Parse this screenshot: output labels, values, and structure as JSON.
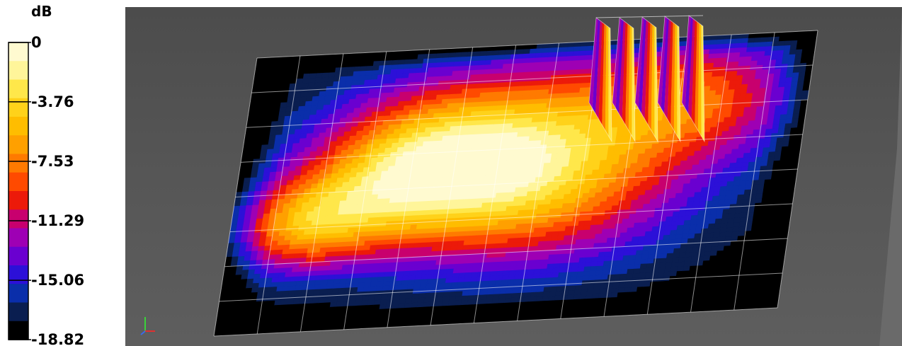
{
  "chart_data": {
    "type": "heatmap",
    "unit": "dB",
    "range": [
      -18.82,
      0
    ],
    "levels": 16,
    "tick_labels": [
      "0",
      "-3.76",
      "-7.53",
      "-11.29",
      "-15.06",
      "-18.82"
    ],
    "tick_values": [
      0,
      -3.76,
      -7.53,
      -11.29,
      -15.06,
      -18.82
    ],
    "colors": [
      "#fffad0",
      "#fff59a",
      "#ffe74a",
      "#ffd21a",
      "#ffbd00",
      "#ffa000",
      "#ff7a00",
      "#ff4a00",
      "#ec1a0a",
      "#c8006e",
      "#9e00b4",
      "#6a00d0",
      "#2c10d8",
      "#0a2eaa",
      "#0a1e50",
      "#000000"
    ],
    "view_label": "3D surface view"
  }
}
